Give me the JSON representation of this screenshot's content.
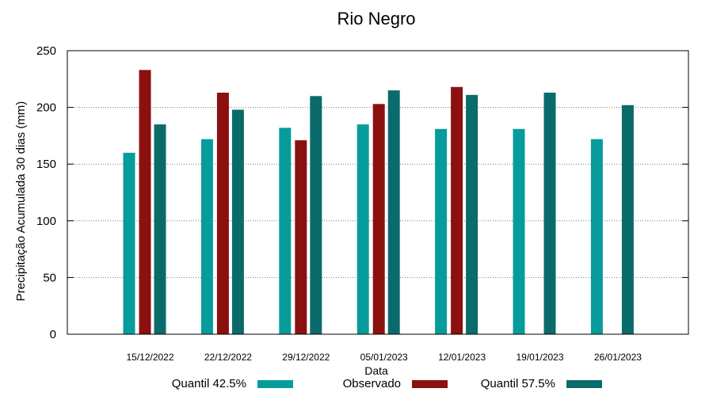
{
  "chart_data": {
    "type": "bar",
    "title": "Rio Negro",
    "xlabel": "Data",
    "ylabel": "Precipitação Acumulada 30 dias (mm)",
    "ylim": [
      0,
      250
    ],
    "yticks": [
      0,
      50,
      100,
      150,
      200,
      250
    ],
    "grid": true,
    "legend_position": "bottom",
    "categories": [
      "15/12/2022",
      "22/12/2022",
      "29/12/2022",
      "05/01/2023",
      "12/01/2023",
      "19/01/2023",
      "26/01/2023"
    ],
    "series": [
      {
        "name": "Quantil 42.5%",
        "color": "#069c9c",
        "values": [
          160,
          172,
          182,
          185,
          181,
          181,
          172
        ]
      },
      {
        "name": "Observado",
        "color": "#8b1010",
        "values": [
          233,
          213,
          171,
          203,
          218,
          null,
          null
        ]
      },
      {
        "name": "Quantil 57.5%",
        "color": "#0b6b6b",
        "values": [
          185,
          198,
          210,
          215,
          211,
          213,
          202
        ]
      }
    ]
  }
}
